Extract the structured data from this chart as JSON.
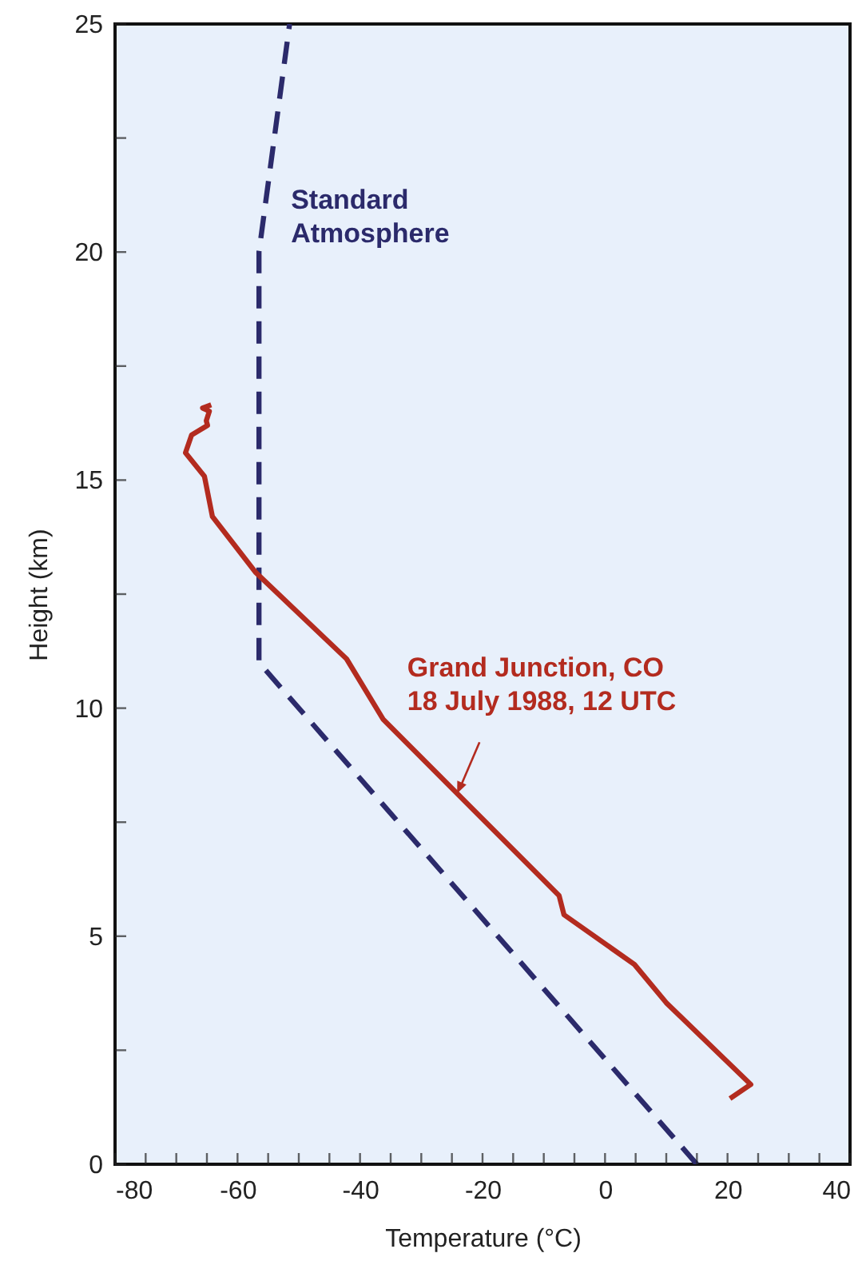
{
  "chart_data": {
    "type": "line",
    "xlabel": "Temperature (°C)",
    "ylabel": "Height (km)",
    "xlim": [
      -80,
      40
    ],
    "ylim": [
      0,
      25
    ],
    "xticks": [
      -80,
      {
        "value": -75,
        "label": null
      },
      {
        "value": -70,
        "label": null
      },
      {
        "value": -65,
        "label": null
      },
      -60,
      {
        "value": -55,
        "label": null
      },
      {
        "value": -50,
        "label": null
      },
      {
        "value": -45,
        "label": null
      },
      -40,
      {
        "value": -35,
        "label": null
      },
      {
        "value": -30,
        "label": null
      },
      {
        "value": -25,
        "label": null
      },
      -20,
      {
        "value": -15,
        "label": null
      },
      {
        "value": -10,
        "label": null
      },
      {
        "value": -5,
        "label": null
      },
      0,
      {
        "value": 5,
        "label": null
      },
      {
        "value": 10,
        "label": null
      },
      {
        "value": 15,
        "label": null
      },
      20,
      {
        "value": 25,
        "label": null
      },
      {
        "value": 30,
        "label": null
      },
      {
        "value": 35,
        "label": null
      },
      40
    ],
    "yticks": [
      0,
      {
        "value": 2.5,
        "label": null
      },
      5,
      {
        "value": 7.5,
        "label": null
      },
      10,
      {
        "value": 12.5,
        "label": null
      },
      15,
      {
        "value": 17.5,
        "label": null
      },
      20,
      {
        "value": 22.5,
        "label": null
      },
      25
    ],
    "series": [
      {
        "name": "Standard\nAtmosphere",
        "color": "#2b2a6b",
        "line_style": "dashed",
        "x": [
          15,
          -56.5,
          -56.5,
          -51.5
        ],
        "values": [
          0,
          11,
          20,
          25
        ]
      },
      {
        "name": "Grand Junction, CO\n18 July 1988, 12 UTC",
        "color": "#b32b1f",
        "line_style": "solid",
        "x": [
          -64.3,
          -65.7,
          -64.6,
          -65.1,
          -64.9,
          -67.5,
          -68.5,
          -65.4,
          -64.1,
          -57.0,
          -42.2,
          -36.2,
          -7.5,
          -6.7,
          4.8,
          10.0,
          23.8,
          20.4
        ],
        "values": [
          16.65,
          16.58,
          16.51,
          16.3,
          16.2,
          15.99,
          15.6,
          15.08,
          14.2,
          12.97,
          11.08,
          9.75,
          5.89,
          5.47,
          4.38,
          3.54,
          1.75,
          1.44
        ]
      }
    ]
  }
}
